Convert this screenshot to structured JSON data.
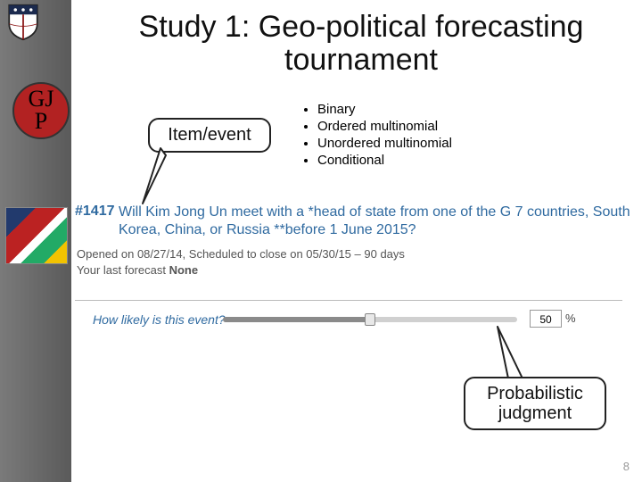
{
  "title": "Study 1: Geo-political forecasting tournament",
  "sidebar": {
    "gjp_line1": "GJ",
    "gjp_line2": "P",
    "bg_gradient_from": "#7a7a7a",
    "bg_gradient_to": "#5a5a5a",
    "circle_color": "#b22222"
  },
  "callouts": {
    "item_event": "Item/event",
    "probabilistic": "Probabilistic judgment"
  },
  "bullets": [
    "Binary",
    "Ordered multinomial",
    "Unordered multinomial",
    "Conditional"
  ],
  "question": {
    "number": "#1417",
    "text": "Will Kim Jong Un meet with a *head of state from one of the G 7 countries, South Korea, China, or Russia **before 1 June 2015?",
    "opened": "Opened on 08/27/14, Scheduled to close on 05/30/15 – 90 days",
    "last_forecast_label": "Your last forecast",
    "last_forecast_value": "None",
    "prompt": "How likely is this event?",
    "link_color": "#2f6aa0"
  },
  "slider": {
    "value": 50,
    "min": 0,
    "max": 100,
    "fill_color": "#8a8a8a",
    "track_color": "#d0d0d0",
    "percent_label": "50",
    "percent_sign": "%"
  },
  "page_number": "8"
}
